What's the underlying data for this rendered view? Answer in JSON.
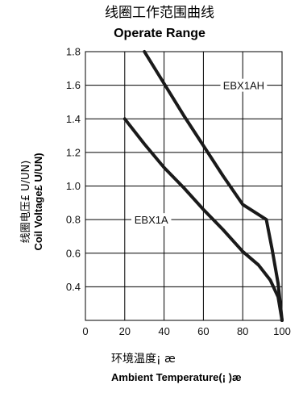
{
  "chart_data": {
    "type": "line",
    "title": "线圈工作范围曲线",
    "subtitle": "Operate Range",
    "xlabel_cn": "环境温度¡ æ",
    "xlabel_en": "Ambient Temperature(¡ )æ",
    "ylabel_cn": "线圈电压£ U/UN)",
    "ylabel_en": "Coil Voltage£ U/UN)",
    "xlim": [
      0,
      100
    ],
    "ylim": [
      0.2,
      1.8
    ],
    "x_ticks": [
      "0",
      "20",
      "40",
      "60",
      "80",
      "100"
    ],
    "y_ticks": [
      "0.4",
      "0.6",
      "0.8",
      "1.0",
      "1.2",
      "1.4",
      "1.6",
      "1.8"
    ],
    "grid": true,
    "series": [
      {
        "name": "EBX1AH",
        "points": [
          [
            30,
            1.8
          ],
          [
            40,
            1.61
          ],
          [
            50,
            1.42
          ],
          [
            60,
            1.24
          ],
          [
            70,
            1.06
          ],
          [
            80,
            0.89
          ],
          [
            92,
            0.8
          ],
          [
            95,
            0.62
          ],
          [
            98,
            0.42
          ],
          [
            100,
            0.2
          ]
        ]
      },
      {
        "name": "EBX1A",
        "points": [
          [
            20,
            1.4
          ],
          [
            30,
            1.25
          ],
          [
            40,
            1.11
          ],
          [
            50,
            0.99
          ],
          [
            60,
            0.86
          ],
          [
            70,
            0.74
          ],
          [
            80,
            0.61
          ],
          [
            88,
            0.53
          ],
          [
            94,
            0.44
          ],
          [
            98,
            0.34
          ],
          [
            100,
            0.2
          ]
        ]
      }
    ]
  }
}
